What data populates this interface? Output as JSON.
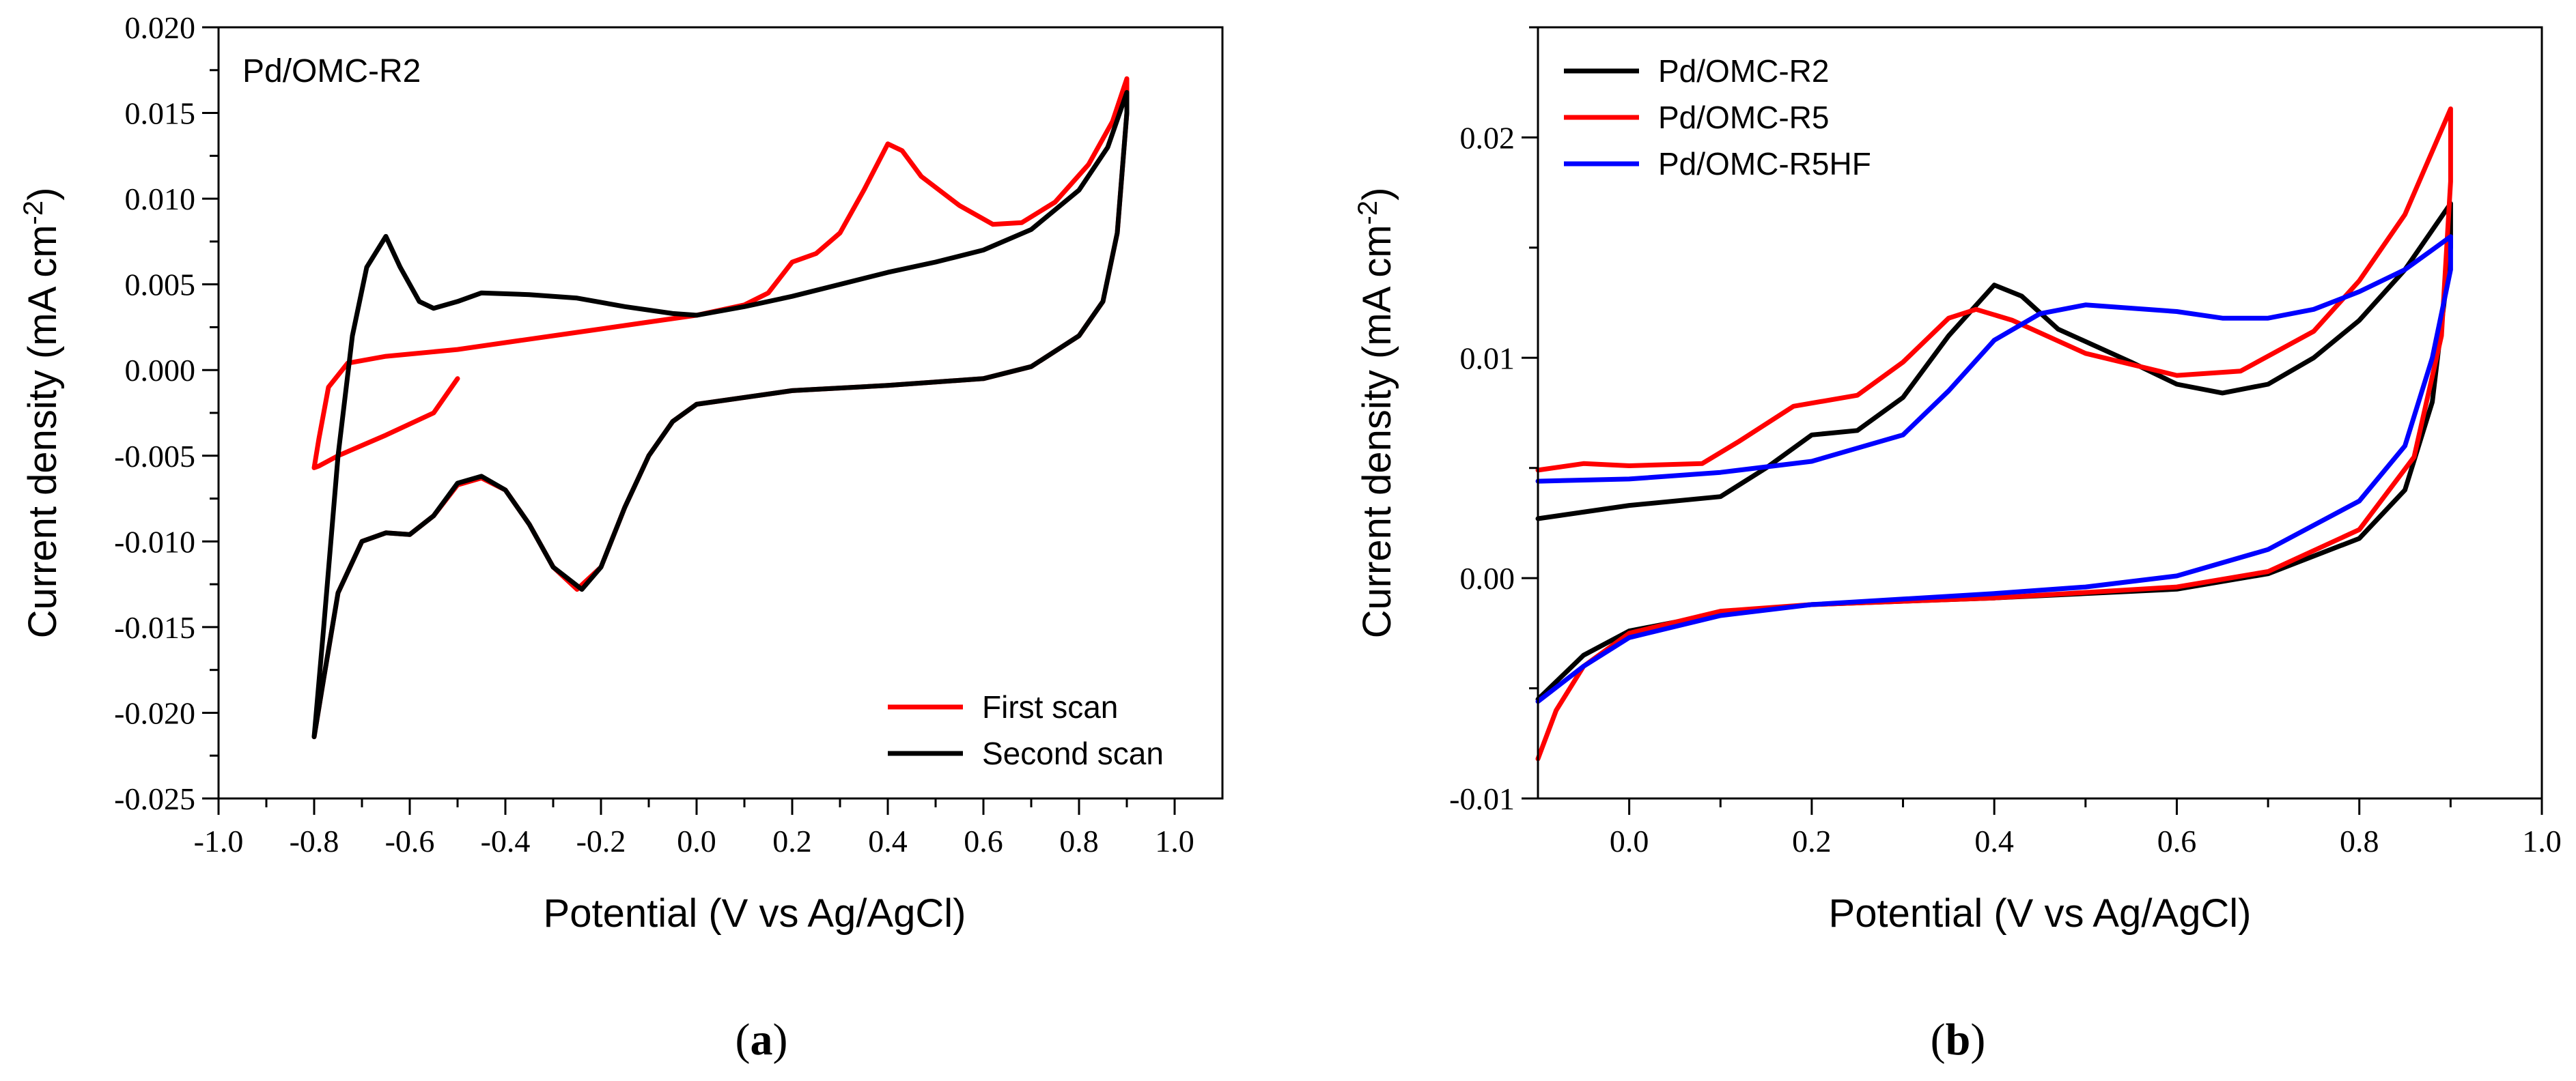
{
  "chart_data": [
    {
      "panel": "a",
      "panel_label": "a",
      "type": "line",
      "title": "",
      "annotation": "Pd/OMC-R2",
      "xlabel": "Potential (V vs Ag/AgCl)",
      "ylabel": "Current density (mA cm",
      "ylabel_sup": "-2",
      "ylabel_close": ")",
      "xlim": [
        -1.0,
        1.1
      ],
      "ylim": [
        -0.025,
        0.02
      ],
      "x_ticks": [
        -1.0,
        -0.8,
        -0.6,
        -0.4,
        -0.2,
        0.0,
        0.2,
        0.4,
        0.6,
        0.8,
        1.0
      ],
      "x_tick_labels": [
        "-1.0",
        "-0.8",
        "-0.6",
        "-0.4",
        "-0.2",
        "0.0",
        "0.2",
        "0.4",
        "0.6",
        "0.8",
        "1.0"
      ],
      "y_ticks": [
        -0.025,
        -0.02,
        -0.015,
        -0.01,
        -0.005,
        0.0,
        0.005,
        0.01,
        0.015,
        0.02
      ],
      "y_tick_labels": [
        "-0.025",
        "-0.020",
        "-0.015",
        "-0.010",
        "-0.005",
        "0.000",
        "0.005",
        "0.010",
        "0.015",
        "0.020"
      ],
      "legend_position": "bottom-right",
      "series": [
        {
          "name": "First scan",
          "color": "#ff0000",
          "in_legend": true,
          "points": [
            [
              -0.5,
              -0.0005
            ],
            [
              -0.55,
              -0.0025
            ],
            [
              -0.65,
              -0.0038
            ],
            [
              -0.75,
              -0.005
            ],
            [
              -0.79,
              -0.0056
            ],
            [
              -0.8,
              -0.0057
            ],
            [
              -0.79,
              -0.004
            ],
            [
              -0.77,
              -0.001
            ],
            [
              -0.73,
              0.0004
            ],
            [
              -0.65,
              0.0008
            ],
            [
              -0.5,
              0.0012
            ],
            [
              -0.4,
              0.0016
            ],
            [
              -0.3,
              0.002
            ],
            [
              -0.2,
              0.0024
            ],
            [
              -0.1,
              0.0028
            ],
            [
              0.0,
              0.0032
            ],
            [
              0.1,
              0.0038
            ],
            [
              0.15,
              0.0045
            ],
            [
              0.2,
              0.0063
            ],
            [
              0.25,
              0.0068
            ],
            [
              0.3,
              0.008
            ],
            [
              0.35,
              0.0105
            ],
            [
              0.4,
              0.0132
            ],
            [
              0.43,
              0.0128
            ],
            [
              0.47,
              0.0113
            ],
            [
              0.55,
              0.0096
            ],
            [
              0.62,
              0.0085
            ],
            [
              0.68,
              0.0086
            ],
            [
              0.75,
              0.0098
            ],
            [
              0.82,
              0.012
            ],
            [
              0.87,
              0.0145
            ],
            [
              0.9,
              0.017
            ],
            [
              0.9,
              0.015
            ],
            [
              0.88,
              0.008
            ],
            [
              0.85,
              0.004
            ],
            [
              0.8,
              0.002
            ],
            [
              0.7,
              0.0002
            ],
            [
              0.6,
              -0.0005
            ],
            [
              0.4,
              -0.0009
            ],
            [
              0.2,
              -0.0012
            ],
            [
              0.0,
              -0.002
            ],
            [
              -0.05,
              -0.003
            ],
            [
              -0.1,
              -0.005
            ],
            [
              -0.15,
              -0.008
            ],
            [
              -0.2,
              -0.0115
            ],
            [
              -0.25,
              -0.0128
            ],
            [
              -0.3,
              -0.0115
            ],
            [
              -0.35,
              -0.009
            ],
            [
              -0.4,
              -0.007
            ],
            [
              -0.45,
              -0.0063
            ],
            [
              -0.5,
              -0.0067
            ],
            [
              -0.55,
              -0.0085
            ],
            [
              -0.6,
              -0.0096
            ],
            [
              -0.65,
              -0.0095
            ],
            [
              -0.7,
              -0.01
            ],
            [
              -0.75,
              -0.013
            ],
            [
              -0.78,
              -0.018
            ],
            [
              -0.8,
              -0.0214
            ]
          ]
        },
        {
          "name": "Second scan",
          "color": "#000000",
          "in_legend": true,
          "points": [
            [
              -0.8,
              -0.0214
            ],
            [
              -0.78,
              -0.015
            ],
            [
              -0.75,
              -0.005
            ],
            [
              -0.72,
              0.002
            ],
            [
              -0.69,
              0.006
            ],
            [
              -0.65,
              0.0078
            ],
            [
              -0.62,
              0.006
            ],
            [
              -0.58,
              0.004
            ],
            [
              -0.55,
              0.0036
            ],
            [
              -0.5,
              0.004
            ],
            [
              -0.45,
              0.0045
            ],
            [
              -0.35,
              0.0044
            ],
            [
              -0.25,
              0.0042
            ],
            [
              -0.15,
              0.0037
            ],
            [
              -0.05,
              0.0033
            ],
            [
              0.0,
              0.0032
            ],
            [
              0.1,
              0.0037
            ],
            [
              0.2,
              0.0043
            ],
            [
              0.3,
              0.005
            ],
            [
              0.4,
              0.0057
            ],
            [
              0.5,
              0.0063
            ],
            [
              0.6,
              0.007
            ],
            [
              0.7,
              0.0082
            ],
            [
              0.8,
              0.0105
            ],
            [
              0.86,
              0.013
            ],
            [
              0.9,
              0.0162
            ],
            [
              0.9,
              0.015
            ],
            [
              0.88,
              0.008
            ],
            [
              0.85,
              0.004
            ],
            [
              0.8,
              0.002
            ],
            [
              0.7,
              0.0002
            ],
            [
              0.6,
              -0.0005
            ],
            [
              0.4,
              -0.0009
            ],
            [
              0.2,
              -0.0012
            ],
            [
              0.0,
              -0.002
            ],
            [
              -0.05,
              -0.003
            ],
            [
              -0.1,
              -0.005
            ],
            [
              -0.15,
              -0.008
            ],
            [
              -0.2,
              -0.0115
            ],
            [
              -0.24,
              -0.0128
            ],
            [
              -0.3,
              -0.0115
            ],
            [
              -0.35,
              -0.009
            ],
            [
              -0.4,
              -0.007
            ],
            [
              -0.45,
              -0.0062
            ],
            [
              -0.5,
              -0.0066
            ],
            [
              -0.55,
              -0.0085
            ],
            [
              -0.6,
              -0.0096
            ],
            [
              -0.65,
              -0.0095
            ],
            [
              -0.7,
              -0.01
            ],
            [
              -0.75,
              -0.013
            ],
            [
              -0.78,
              -0.018
            ],
            [
              -0.8,
              -0.0214
            ]
          ]
        }
      ]
    },
    {
      "panel": "b",
      "panel_label": "b",
      "type": "line",
      "title": "",
      "xlabel": "Potential (V vs Ag/AgCl)",
      "ylabel": "Current density (mA cm",
      "ylabel_sup": "-2",
      "ylabel_close": ")",
      "xlim": [
        -0.1,
        1.0
      ],
      "ylim": [
        -0.01,
        0.025
      ],
      "x_ticks": [
        0.0,
        0.2,
        0.4,
        0.6,
        0.8,
        1.0
      ],
      "x_tick_labels": [
        "0.0",
        "0.2",
        "0.4",
        "0.6",
        "0.8",
        "1.0"
      ],
      "y_ticks": [
        -0.01,
        0.0,
        0.01,
        0.02
      ],
      "y_tick_labels": [
        "-0.01",
        "0.00",
        "0.01",
        "0.02"
      ],
      "legend_position": "top-left",
      "series": [
        {
          "name": "Pd/OMC-R2",
          "color": "#000000",
          "in_legend": true,
          "points": [
            [
              -0.1,
              0.0027
            ],
            [
              0.0,
              0.0033
            ],
            [
              0.1,
              0.0037
            ],
            [
              0.15,
              0.005
            ],
            [
              0.2,
              0.0065
            ],
            [
              0.25,
              0.0067
            ],
            [
              0.3,
              0.0082
            ],
            [
              0.35,
              0.011
            ],
            [
              0.4,
              0.0133
            ],
            [
              0.43,
              0.0128
            ],
            [
              0.47,
              0.0113
            ],
            [
              0.55,
              0.0098
            ],
            [
              0.6,
              0.0088
            ],
            [
              0.65,
              0.0084
            ],
            [
              0.7,
              0.0088
            ],
            [
              0.75,
              0.01
            ],
            [
              0.8,
              0.0117
            ],
            [
              0.85,
              0.014
            ],
            [
              0.9,
              0.017
            ],
            [
              0.9,
              0.015
            ],
            [
              0.88,
              0.008
            ],
            [
              0.85,
              0.004
            ],
            [
              0.8,
              0.0018
            ],
            [
              0.7,
              0.0002
            ],
            [
              0.6,
              -0.0005
            ],
            [
              0.4,
              -0.0009
            ],
            [
              0.2,
              -0.0012
            ],
            [
              0.1,
              -0.0016
            ],
            [
              0.0,
              -0.0024
            ],
            [
              -0.05,
              -0.0035
            ],
            [
              -0.1,
              -0.0055
            ]
          ]
        },
        {
          "name": "Pd/OMC-R5",
          "color": "#ff0000",
          "in_legend": true,
          "points": [
            [
              -0.1,
              0.0049
            ],
            [
              -0.05,
              0.0052
            ],
            [
              0.0,
              0.0051
            ],
            [
              0.08,
              0.0052
            ],
            [
              0.12,
              0.0062
            ],
            [
              0.18,
              0.0078
            ],
            [
              0.25,
              0.0083
            ],
            [
              0.3,
              0.0098
            ],
            [
              0.35,
              0.0118
            ],
            [
              0.38,
              0.0122
            ],
            [
              0.42,
              0.0117
            ],
            [
              0.5,
              0.0102
            ],
            [
              0.6,
              0.0092
            ],
            [
              0.67,
              0.0094
            ],
            [
              0.75,
              0.0112
            ],
            [
              0.8,
              0.0135
            ],
            [
              0.85,
              0.0165
            ],
            [
              0.9,
              0.0213
            ],
            [
              0.9,
              0.018
            ],
            [
              0.89,
              0.011
            ],
            [
              0.86,
              0.0055
            ],
            [
              0.8,
              0.0022
            ],
            [
              0.7,
              0.0003
            ],
            [
              0.6,
              -0.0004
            ],
            [
              0.4,
              -0.0009
            ],
            [
              0.2,
              -0.0012
            ],
            [
              0.1,
              -0.0015
            ],
            [
              0.0,
              -0.0025
            ],
            [
              -0.05,
              -0.004
            ],
            [
              -0.08,
              -0.006
            ],
            [
              -0.1,
              -0.0082
            ]
          ]
        },
        {
          "name": "Pd/OMC-R5HF",
          "color": "#0000ff",
          "in_legend": true,
          "points": [
            [
              -0.1,
              0.0044
            ],
            [
              0.0,
              0.0045
            ],
            [
              0.1,
              0.0048
            ],
            [
              0.2,
              0.0053
            ],
            [
              0.3,
              0.0065
            ],
            [
              0.35,
              0.0085
            ],
            [
              0.4,
              0.0108
            ],
            [
              0.45,
              0.012
            ],
            [
              0.5,
              0.0124
            ],
            [
              0.6,
              0.0121
            ],
            [
              0.65,
              0.0118
            ],
            [
              0.7,
              0.0118
            ],
            [
              0.75,
              0.0122
            ],
            [
              0.8,
              0.013
            ],
            [
              0.85,
              0.014
            ],
            [
              0.9,
              0.0155
            ],
            [
              0.9,
              0.014
            ],
            [
              0.88,
              0.01
            ],
            [
              0.85,
              0.006
            ],
            [
              0.8,
              0.0035
            ],
            [
              0.7,
              0.0013
            ],
            [
              0.6,
              0.0001
            ],
            [
              0.5,
              -0.0004
            ],
            [
              0.4,
              -0.0007
            ],
            [
              0.2,
              -0.0012
            ],
            [
              0.1,
              -0.0017
            ],
            [
              0.0,
              -0.0027
            ],
            [
              -0.05,
              -0.004
            ],
            [
              -0.1,
              -0.0056
            ]
          ]
        }
      ]
    }
  ]
}
